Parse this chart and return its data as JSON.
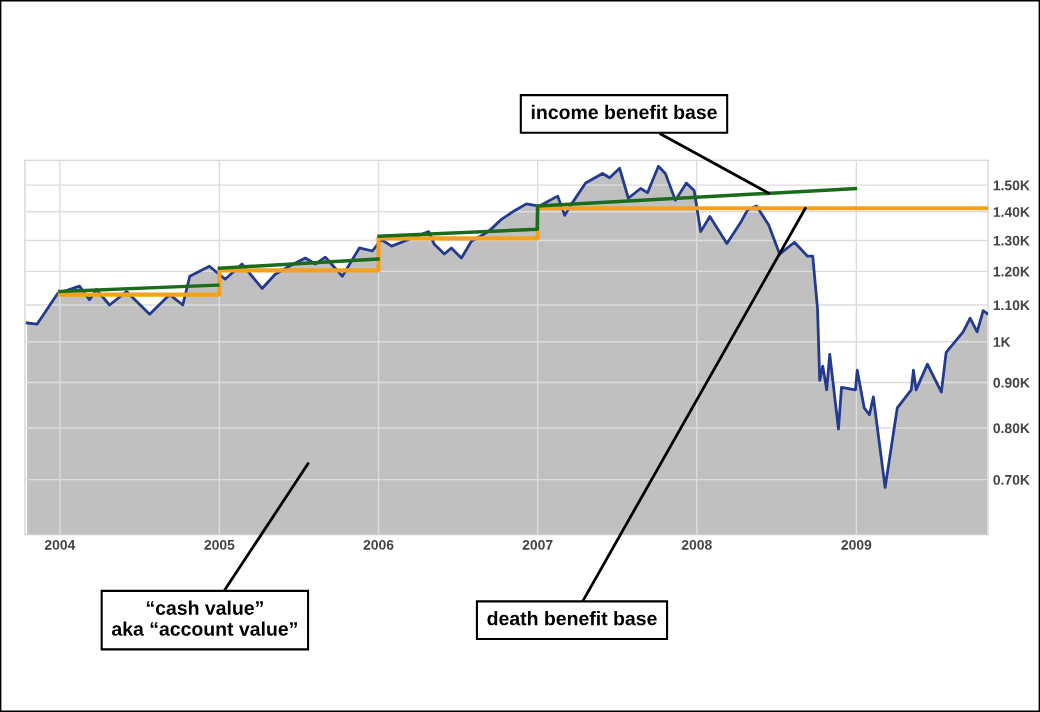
{
  "chart_data": {
    "type": "area",
    "log": "y",
    "grid": true,
    "marker": "none",
    "line_style": "solid",
    "xlim": [
      "2003-10-13",
      "2009-10-30"
    ],
    "xticks": [
      {
        "value": "2004-01-01",
        "label": "2004"
      },
      {
        "value": "2005-01-01",
        "label": "2005"
      },
      {
        "value": "2006-01-01",
        "label": "2006"
      },
      {
        "value": "2007-01-01",
        "label": "2007"
      },
      {
        "value": "2008-01-01",
        "label": "2008"
      },
      {
        "value": "2009-01-01",
        "label": "2009"
      }
    ],
    "ylim": [
      607,
      1600
    ],
    "yticks": [
      {
        "value": 700,
        "label": "0.70K"
      },
      {
        "value": 800,
        "label": "0.80K"
      },
      {
        "value": 900,
        "label": "0.90K"
      },
      {
        "value": 1000,
        "label": "1K"
      },
      {
        "value": 1100,
        "label": "1.10K"
      },
      {
        "value": 1200,
        "label": "1.20K"
      },
      {
        "value": 1300,
        "label": "1.30K"
      },
      {
        "value": 1400,
        "label": "1.40K"
      },
      {
        "value": 1500,
        "label": "1.50K"
      }
    ],
    "series": [
      {
        "color": "#233a8f",
        "x": [
          "2003-10-18",
          "2003-11-10",
          "2003-12-27",
          "2004-02-15",
          "2004-03-09",
          "2004-03-25",
          "2004-04-24",
          "2004-06-02",
          "2004-07-25",
          "2004-09-09",
          "2004-10-09",
          "2004-10-25",
          "2004-12-09",
          "2005-01-14",
          "2005-02-22",
          "2005-04-09",
          "2005-05-09",
          "2005-06-10",
          "2005-07-17",
          "2005-08-09",
          "2005-09-01",
          "2005-10-10",
          "2005-11-18",
          "2005-12-18",
          "2006-01-07",
          "2006-01-31",
          "2006-03-11",
          "2006-04-26",
          "2006-05-09",
          "2006-06-01",
          "2006-06-17",
          "2006-07-10",
          "2006-08-02",
          "2006-09-10",
          "2006-10-10",
          "2006-11-09",
          "2006-12-06",
          "2007-01-05",
          "2007-02-16",
          "2007-03-04",
          "2007-03-20",
          "2007-04-21",
          "2007-05-30",
          "2007-06-15",
          "2007-07-08",
          "2007-07-28",
          "2007-08-25",
          "2007-09-10",
          "2007-10-05",
          "2007-10-21",
          "2007-11-13",
          "2007-12-08",
          "2007-12-26",
          "2008-01-10",
          "2008-01-31",
          "2008-03-10",
          "2008-04-11",
          "2008-04-27",
          "2008-05-17",
          "2008-06-14",
          "2008-07-09",
          "2008-08-12",
          "2008-09-11",
          "2008-09-23",
          "2008-10-04",
          "2008-10-09",
          "2008-10-16",
          "2008-10-25",
          "2008-11-01",
          "2008-11-21",
          "2008-11-28",
          "2008-12-30",
          "2009-01-03",
          "2009-01-19",
          "2009-01-31",
          "2009-02-09",
          "2009-03-08",
          "2009-04-05",
          "2009-05-07",
          "2009-05-12",
          "2009-05-18",
          "2009-06-13",
          "2009-07-15",
          "2009-07-26",
          "2009-09-03",
          "2009-09-19",
          "2009-10-05",
          "2009-10-19",
          "2009-10-28"
        ],
        "values": [
          1050,
          1047,
          1133,
          1155,
          1115,
          1145,
          1100,
          1139,
          1074,
          1130,
          1100,
          1185,
          1216,
          1176,
          1223,
          1148,
          1191,
          1216,
          1242,
          1223,
          1245,
          1185,
          1275,
          1265,
          1303,
          1281,
          1303,
          1330,
          1287,
          1255,
          1275,
          1242,
          1297,
          1330,
          1373,
          1404,
          1429,
          1421,
          1458,
          1387,
          1429,
          1508,
          1546,
          1529,
          1567,
          1450,
          1487,
          1471,
          1575,
          1546,
          1442,
          1508,
          1479,
          1330,
          1383,
          1290,
          1363,
          1408,
          1421,
          1353,
          1255,
          1294,
          1248,
          1248,
          1089,
          905,
          939,
          883,
          968,
          798,
          889,
          883,
          929,
          843,
          828,
          867,
          686,
          843,
          883,
          929,
          883,
          944,
          878,
          973,
          1026,
          1063,
          1026,
          1084,
          1076
        ]
      },
      {
        "type": "step",
        "color": "#f5a11c",
        "x": [
          "2004-01-01",
          "2005-01-01",
          "2006-01-01",
          "2007-01-01",
          "2009-10-30"
        ],
        "values": [
          1130,
          1203,
          1307,
          1413,
          1413
        ]
      },
      {
        "type": "line",
        "color": "#1a6b1a",
        "x": [
          "2004-01-01",
          "2004-12-28",
          "2004-12-29",
          "2005-01-01",
          "2005-12-31",
          "2006-01-01",
          "2006-01-02",
          "2006-12-31",
          "2007-01-01",
          "2008-12-30"
        ],
        "values": [
          1139,
          1158,
          null,
          1210,
          1239,
          null,
          1314,
          1338,
          1421,
          1487
        ]
      }
    ],
    "annotations": [
      {
        "text": "income benefit base",
        "x": "2008-06-14",
        "y": 1469
      },
      {
        "text": "death benefit base",
        "x": "2008-09-06",
        "y": 1413
      },
      "“cash value”\naka “account value”"
    ]
  }
}
